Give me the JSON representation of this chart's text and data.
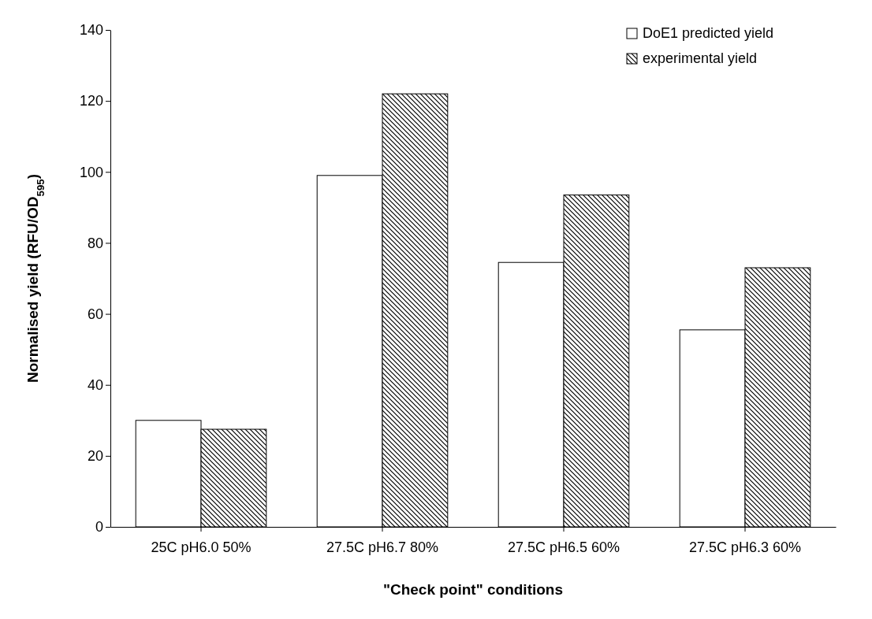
{
  "chart_data": {
    "type": "bar",
    "xlabel": "\"Check point\" conditions",
    "ylabel": "Normalised yield (RFU/OD$_{595}$)",
    "categories": [
      "25C pH6.0 50%",
      "27.5C pH6.7 80%",
      "27.5C pH6.5 60%",
      "27.5C pH6.3 60%"
    ],
    "series": [
      {
        "name": "DoE1 predicted yield",
        "color": "#ffffff",
        "values": [
          30,
          99,
          74.5,
          55.5
        ]
      },
      {
        "name": "experimental yield",
        "color": "#000000",
        "values": [
          27.5,
          122,
          93.5,
          73
        ]
      }
    ],
    "ylim": [
      0,
      140
    ],
    "yticks": [
      0,
      20,
      40,
      60,
      80,
      100,
      120,
      140
    ],
    "grid": false,
    "legend": "top right"
  }
}
